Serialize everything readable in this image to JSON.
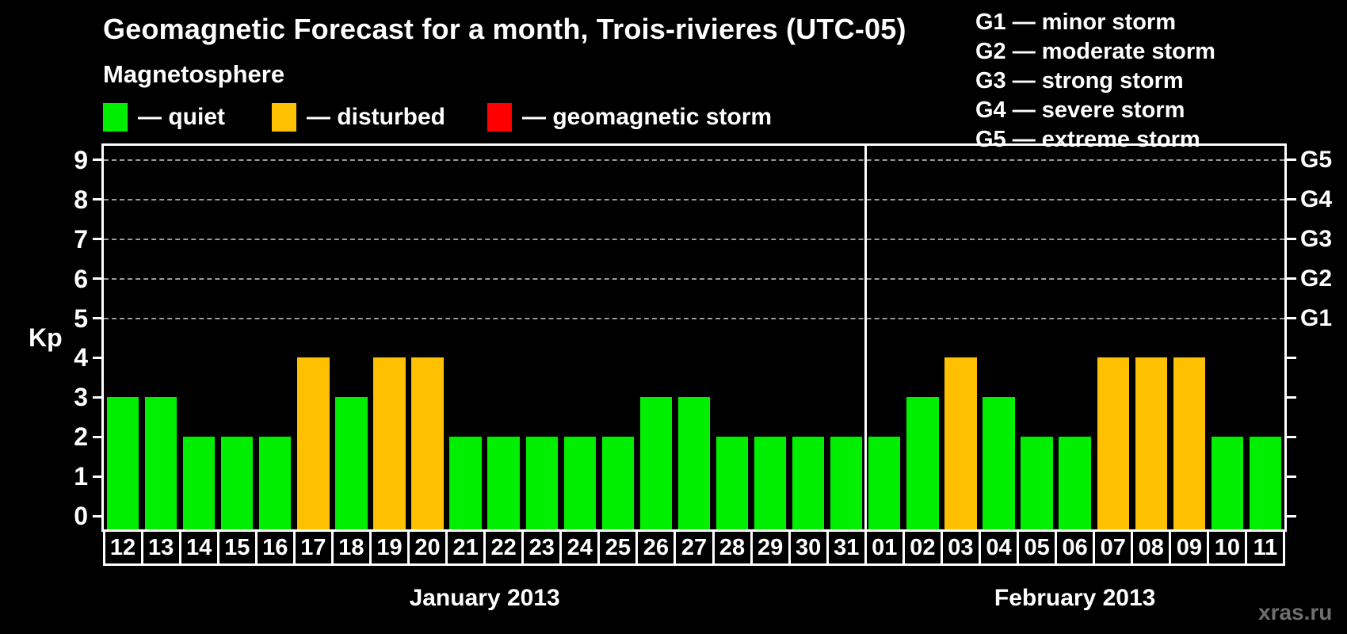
{
  "title": "Geomagnetic Forecast for a month, Trois-rivieres (UTC-05)",
  "magnetosphere_legend": {
    "heading": "Magnetosphere",
    "items": [
      {
        "name": "quiet",
        "label": "— quiet",
        "color": "#00ee00"
      },
      {
        "name": "disturbed",
        "label": "— disturbed",
        "color": "#ffc000"
      },
      {
        "name": "geomagnetic-storm",
        "label": "— geomagnetic storm",
        "color": "#ff0000"
      }
    ]
  },
  "storm_scale_legend": [
    {
      "label": "G1 — minor storm"
    },
    {
      "label": "G2 — moderate storm"
    },
    {
      "label": "G3 — strong storm"
    },
    {
      "label": "G4 — severe storm"
    },
    {
      "label": "G5 — extreme storm"
    }
  ],
  "watermark": "xras.ru",
  "chart_data": {
    "type": "bar",
    "ylabel": "Kp",
    "ylim": [
      0,
      9
    ],
    "yticks": [
      0,
      1,
      2,
      3,
      4,
      5,
      6,
      7,
      8,
      9
    ],
    "gridlines_at_kp": [
      5,
      6,
      7,
      8,
      9
    ],
    "grid": "dashed horizontal lines at storm levels only",
    "legend_position": "top-left and top-right",
    "right_axis_labels": [
      {
        "kp": 5,
        "label": "G1"
      },
      {
        "kp": 6,
        "label": "G2"
      },
      {
        "kp": 7,
        "label": "G3"
      },
      {
        "kp": 8,
        "label": "G4"
      },
      {
        "kp": 9,
        "label": "G5"
      }
    ],
    "status_colors": {
      "quiet": "#00ee00",
      "disturbed": "#ffc000",
      "storm": "#ff0000"
    },
    "months": [
      {
        "label": "January 2013",
        "categories": [
          "12",
          "13",
          "14",
          "15",
          "16",
          "17",
          "18",
          "19",
          "20",
          "21",
          "22",
          "23",
          "24",
          "25",
          "26",
          "27",
          "28",
          "29",
          "30",
          "31"
        ],
        "values": [
          3,
          3,
          2,
          2,
          2,
          4,
          3,
          4,
          4,
          2,
          2,
          2,
          2,
          2,
          3,
          3,
          2,
          2,
          2,
          2
        ],
        "statuses": [
          "quiet",
          "quiet",
          "quiet",
          "quiet",
          "quiet",
          "disturbed",
          "quiet",
          "disturbed",
          "disturbed",
          "quiet",
          "quiet",
          "quiet",
          "quiet",
          "quiet",
          "quiet",
          "quiet",
          "quiet",
          "quiet",
          "quiet",
          "quiet"
        ]
      },
      {
        "label": "February 2013",
        "categories": [
          "01",
          "02",
          "03",
          "04",
          "05",
          "06",
          "07",
          "08",
          "09",
          "10",
          "11"
        ],
        "values": [
          2,
          3,
          4,
          3,
          2,
          2,
          4,
          4,
          4,
          2,
          2
        ],
        "statuses": [
          "quiet",
          "quiet",
          "disturbed",
          "quiet",
          "quiet",
          "quiet",
          "disturbed",
          "disturbed",
          "disturbed",
          "quiet",
          "quiet"
        ]
      }
    ]
  }
}
